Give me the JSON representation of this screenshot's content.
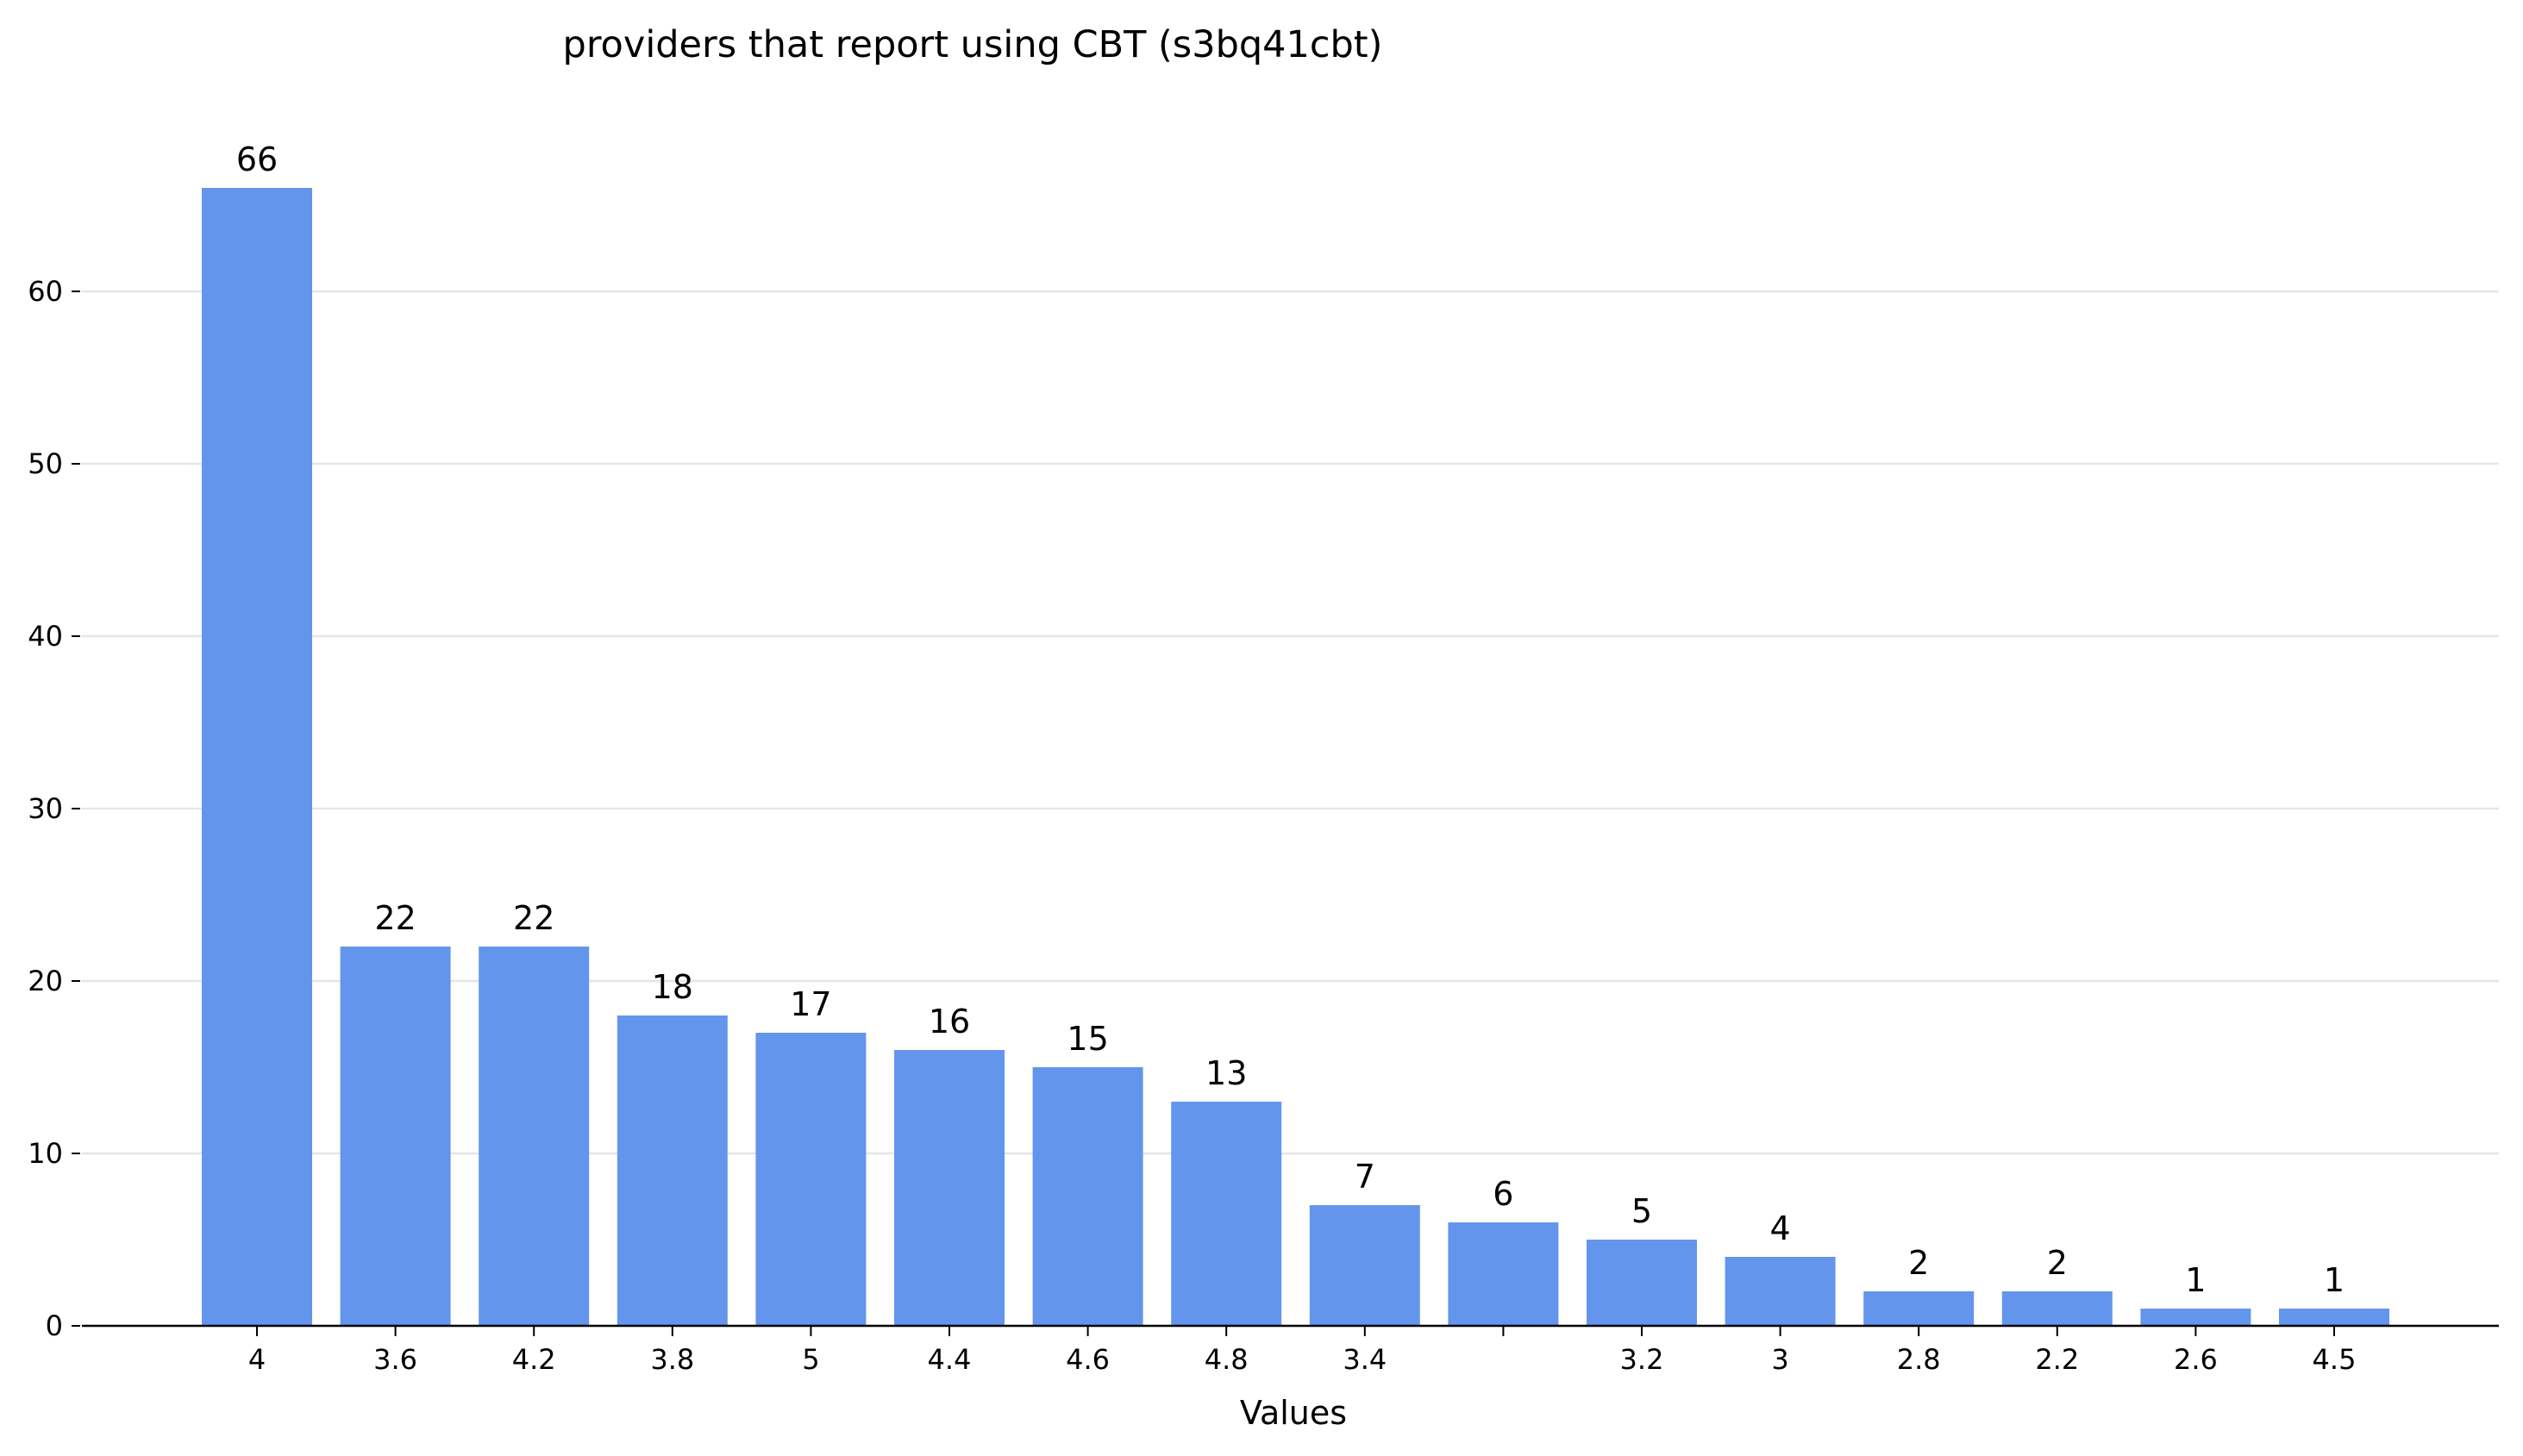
{
  "chart_data": {
    "type": "bar",
    "title": "providers that report using CBT (s3bq41cbt)",
    "xlabel": "Values",
    "ylabel": "",
    "categories": [
      "4",
      "3.6",
      "4.2",
      "3.8",
      "5",
      "4.4",
      "4.6",
      "4.8",
      "3.4",
      "",
      "3.2",
      "3",
      "2.8",
      "2.2",
      "2.6",
      "4.5"
    ],
    "values": [
      66,
      22,
      22,
      18,
      17,
      16,
      15,
      13,
      7,
      6,
      5,
      4,
      2,
      2,
      1,
      1
    ],
    "ylim": [
      0,
      70
    ],
    "yticks": [
      0,
      10,
      20,
      30,
      40,
      50,
      60
    ],
    "grid": "horizontal",
    "bar_color": "#6495ED",
    "grid_color": "#e6e6e6"
  }
}
